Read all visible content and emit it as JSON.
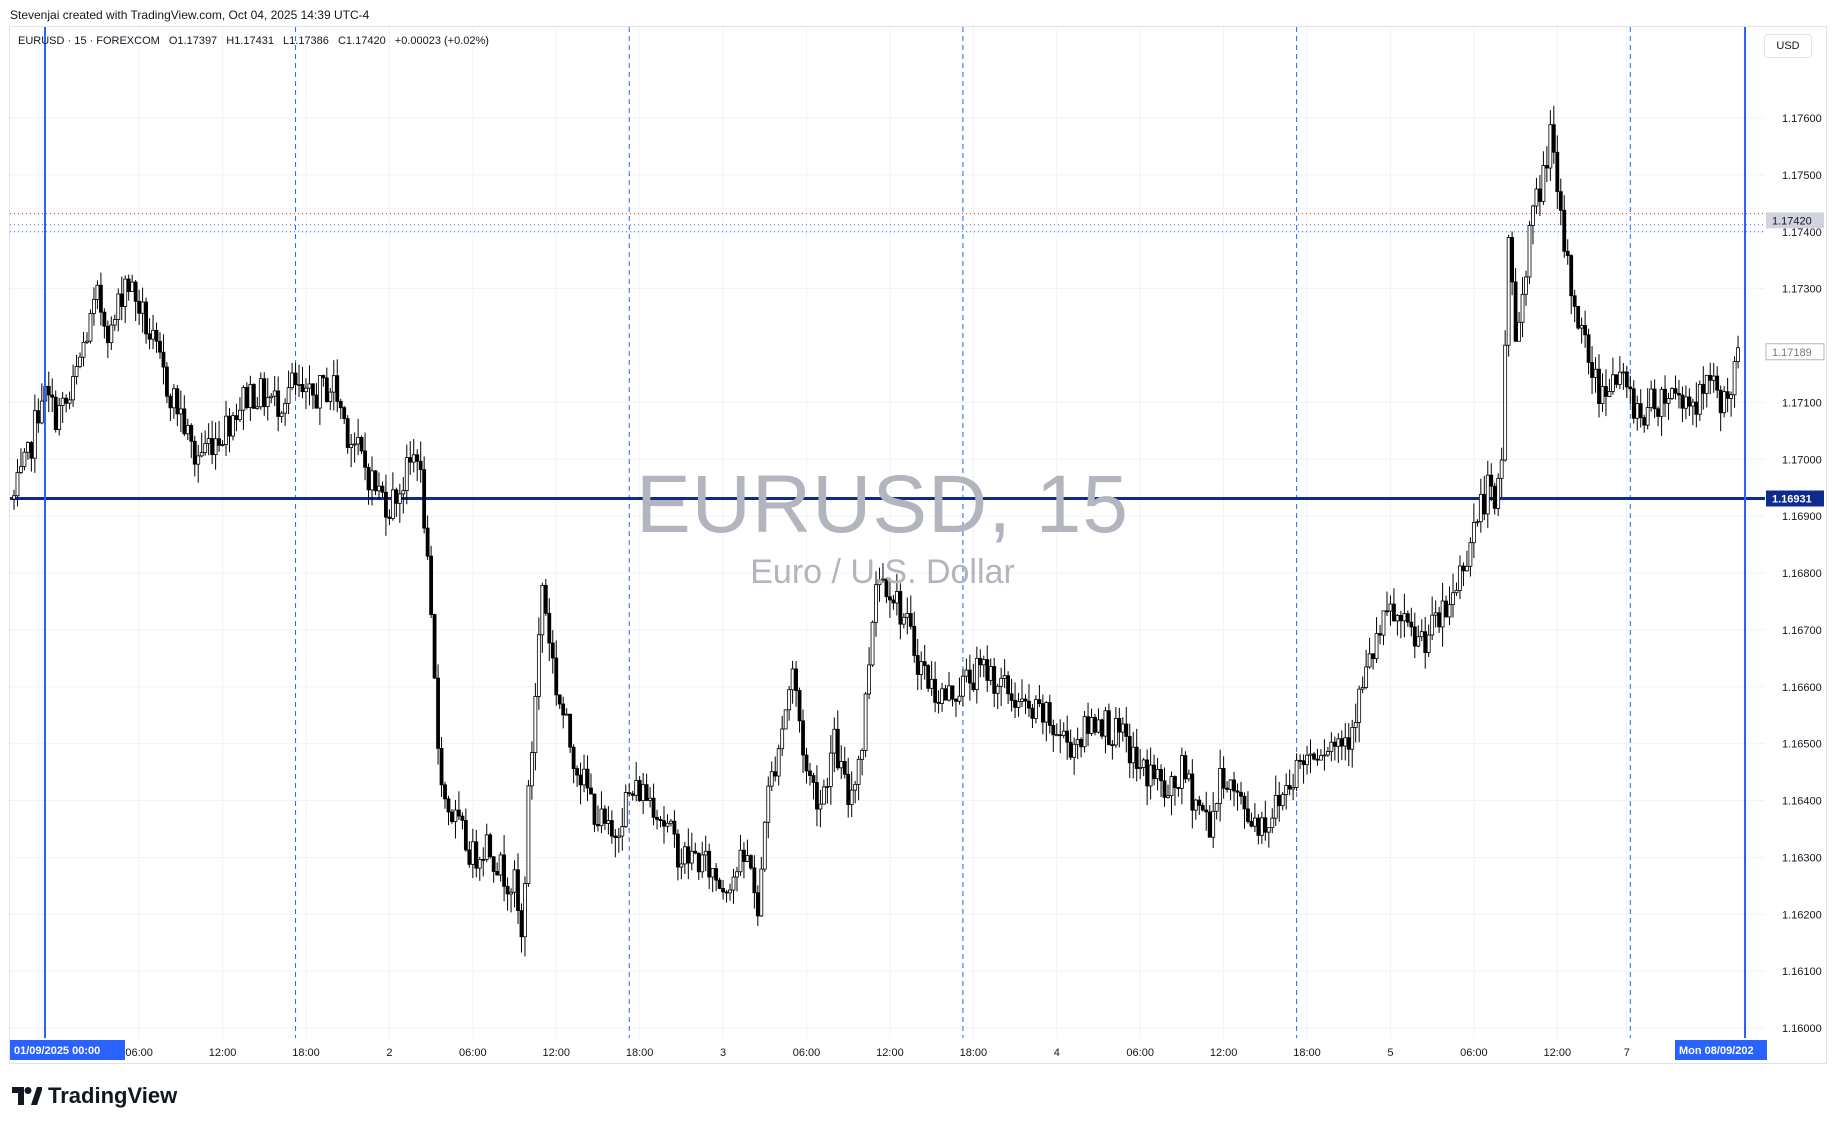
{
  "header": {
    "credit": "Stevenjai created with TradingView.com, Oct 04, 2025 14:39 UTC-4"
  },
  "legend": {
    "symbol": "EURUSD · 15 · FOREXCOM",
    "open": "O1.17397",
    "high": "H1.17431",
    "low": "L1.17386",
    "close": "C1.17420",
    "change": "+0.00023 (+0.02%)"
  },
  "watermark": {
    "title": "EURUSD, 15",
    "subtitle": "Euro / U.S. Dollar"
  },
  "currency_label": "USD",
  "brand": {
    "name": "TradingView",
    "logo_icon": "tradingview-logo-icon"
  },
  "colors": {
    "candle": "#000000",
    "crosshair_blue": "#2962ff",
    "level_line": "#0d2a8c",
    "dashed_vertical": "#2962ff",
    "last_price_line": "#f23645",
    "grid": "#f0f3fa"
  },
  "chart_data": {
    "type": "candlestick",
    "symbol": "EURUSD",
    "timeframe": "15",
    "ylim": [
      1.1595,
      1.1775
    ],
    "y_ticks": [
      "1.16000",
      "1.16100",
      "1.16200",
      "1.16300",
      "1.16400",
      "1.16500",
      "1.16600",
      "1.16700",
      "1.16800",
      "1.16900",
      "1.17000",
      "1.17100",
      "1.17300",
      "1.17400",
      "1.17500",
      "1.17600"
    ],
    "x_ticks": [
      {
        "label": "06:00",
        "t": 6
      },
      {
        "label": "12:00",
        "t": 12
      },
      {
        "label": "18:00",
        "t": 18
      },
      {
        "label": "2",
        "t": 24
      },
      {
        "label": "06:00",
        "t": 30
      },
      {
        "label": "12:00",
        "t": 36
      },
      {
        "label": "18:00",
        "t": 42
      },
      {
        "label": "3",
        "t": 48
      },
      {
        "label": "06:00",
        "t": 54
      },
      {
        "label": "12:00",
        "t": 60
      },
      {
        "label": "18:00",
        "t": 66
      },
      {
        "label": "4",
        "t": 72
      },
      {
        "label": "06:00",
        "t": 78
      },
      {
        "label": "12:00",
        "t": 84
      },
      {
        "label": "18:00",
        "t": 90
      },
      {
        "label": "5",
        "t": 96
      },
      {
        "label": "06:00",
        "t": 102
      },
      {
        "label": "12:00",
        "t": 108
      },
      {
        "label": "7",
        "t": 113
      }
    ],
    "x_range_hours": [
      -3,
      121.5
    ],
    "dashed_vertical_hours": [
      17.25,
      41.25,
      65.25,
      89.25,
      113.25
    ],
    "vertical_lines": [
      {
        "t": 0,
        "label": "01/09/2025  00:00"
      },
      {
        "t": 120.5,
        "label": "Mon 08/09/202"
      }
    ],
    "horizontal_level": {
      "price": 1.16931,
      "label": "1.16931"
    },
    "price_labels": [
      {
        "price": 1.1742,
        "label": "1.17420",
        "kind": "last"
      },
      {
        "price": 1.17189,
        "label": "1.17189",
        "kind": "secondary"
      }
    ],
    "dotted_levels": [
      1.17432,
      1.17412,
      1.174
    ],
    "path": [
      [
        -3,
        1.1693
      ],
      [
        -2,
        1.17
      ],
      [
        -1,
        1.1712
      ],
      [
        0,
        1.1708
      ],
      [
        1,
        1.171
      ],
      [
        2,
        1.172
      ],
      [
        3,
        1.1728
      ],
      [
        4,
        1.1722
      ],
      [
        5,
        1.1732
      ],
      [
        6,
        1.1727
      ],
      [
        7,
        1.172
      ],
      [
        8,
        1.1713
      ],
      [
        9,
        1.1708
      ],
      [
        10,
        1.17
      ],
      [
        11,
        1.1703
      ],
      [
        12,
        1.1705
      ],
      [
        13,
        1.1709
      ],
      [
        14,
        1.1712
      ],
      [
        15,
        1.1711
      ],
      [
        16,
        1.171
      ],
      [
        17,
        1.1713
      ],
      [
        18,
        1.171
      ],
      [
        19,
        1.1712
      ],
      [
        20,
        1.1713
      ],
      [
        21,
        1.1705
      ],
      [
        22,
        1.17
      ],
      [
        23,
        1.1695
      ],
      [
        24,
        1.1692
      ],
      [
        25,
        1.1696
      ],
      [
        26,
        1.1702
      ],
      [
        26.5,
        1.169
      ],
      [
        27,
        1.167
      ],
      [
        27.5,
        1.165
      ],
      [
        28,
        1.164
      ],
      [
        29,
        1.1635
      ],
      [
        30,
        1.163
      ],
      [
        31,
        1.1633
      ],
      [
        32,
        1.1628
      ],
      [
        33,
        1.1625
      ],
      [
        33.5,
        1.1615
      ],
      [
        34,
        1.164
      ],
      [
        35,
        1.1678
      ],
      [
        36,
        1.166
      ],
      [
        37,
        1.165
      ],
      [
        38,
        1.1643
      ],
      [
        39,
        1.1637
      ],
      [
        40,
        1.1633
      ],
      [
        41,
        1.164
      ],
      [
        42,
        1.1642
      ],
      [
        43,
        1.164
      ],
      [
        44,
        1.1635
      ],
      [
        45,
        1.163
      ],
      [
        46,
        1.163
      ],
      [
        47,
        1.1628
      ],
      [
        48,
        1.1625
      ],
      [
        49,
        1.1628
      ],
      [
        50,
        1.163
      ],
      [
        50.5,
        1.1618
      ],
      [
        51,
        1.1638
      ],
      [
        52,
        1.165
      ],
      [
        53,
        1.1663
      ],
      [
        54,
        1.1645
      ],
      [
        55,
        1.164
      ],
      [
        56,
        1.165
      ],
      [
        57,
        1.164
      ],
      [
        58,
        1.165
      ],
      [
        59,
        1.168
      ],
      [
        60,
        1.1678
      ],
      [
        61,
        1.1672
      ],
      [
        62,
        1.1665
      ],
      [
        63,
        1.166
      ],
      [
        64,
        1.1658
      ],
      [
        65,
        1.166
      ],
      [
        66,
        1.1662
      ],
      [
        67,
        1.1663
      ],
      [
        68,
        1.166
      ],
      [
        69,
        1.1658
      ],
      [
        70,
        1.1655
      ],
      [
        71,
        1.1655
      ],
      [
        72,
        1.1652
      ],
      [
        73,
        1.165
      ],
      [
        74,
        1.1652
      ],
      [
        75,
        1.1655
      ],
      [
        76,
        1.1652
      ],
      [
        77,
        1.165
      ],
      [
        78,
        1.1645
      ],
      [
        79,
        1.1645
      ],
      [
        80,
        1.164
      ],
      [
        81,
        1.1645
      ],
      [
        82,
        1.164
      ],
      [
        83,
        1.1636
      ],
      [
        84,
        1.1645
      ],
      [
        85,
        1.164
      ],
      [
        86,
        1.1637
      ],
      [
        87,
        1.1636
      ],
      [
        88,
        1.164
      ],
      [
        89,
        1.1645
      ],
      [
        90,
        1.1648
      ],
      [
        91,
        1.165
      ],
      [
        92,
        1.165
      ],
      [
        93,
        1.1652
      ],
      [
        94,
        1.166
      ],
      [
        95,
        1.1668
      ],
      [
        96,
        1.1673
      ],
      [
        97,
        1.167
      ],
      [
        98,
        1.1668
      ],
      [
        99,
        1.167
      ],
      [
        100,
        1.1673
      ],
      [
        101,
        1.168
      ],
      [
        102,
        1.1688
      ],
      [
        103,
        1.1695
      ],
      [
        103.5,
        1.169
      ],
      [
        104,
        1.17
      ],
      [
        104.5,
        1.174
      ],
      [
        105,
        1.172
      ],
      [
        106,
        1.174
      ],
      [
        107,
        1.175
      ],
      [
        107.5,
        1.1758
      ],
      [
        108,
        1.1745
      ],
      [
        109,
        1.173
      ],
      [
        110,
        1.172
      ],
      [
        111,
        1.1712
      ],
      [
        112,
        1.1715
      ],
      [
        113,
        1.1712
      ],
      [
        114,
        1.1708
      ],
      [
        115,
        1.171
      ],
      [
        116,
        1.1712
      ],
      [
        117,
        1.1711
      ],
      [
        118,
        1.171
      ],
      [
        119,
        1.1713
      ],
      [
        120,
        1.171
      ],
      [
        121,
        1.1717
      ]
    ]
  }
}
